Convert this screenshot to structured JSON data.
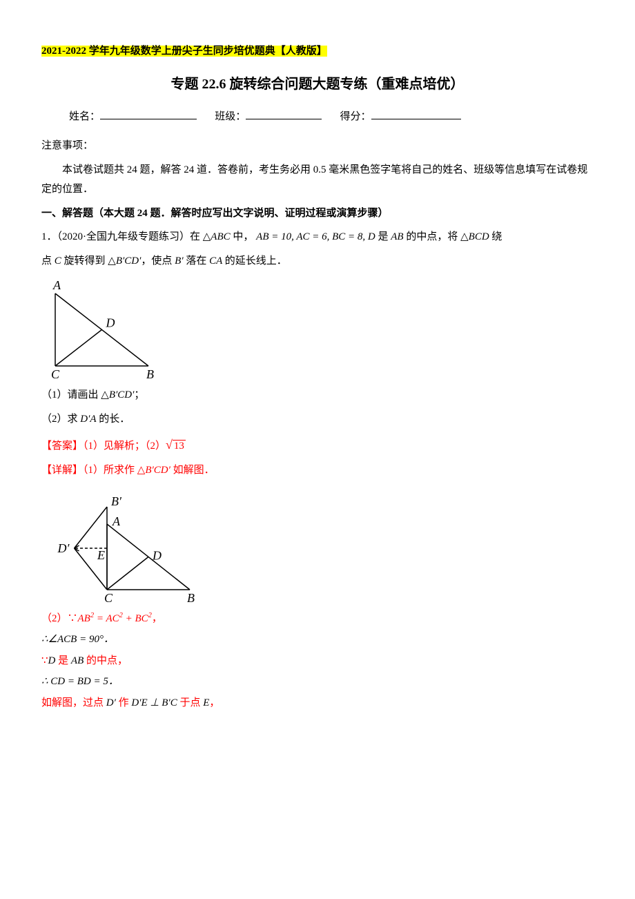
{
  "header": {
    "highlight": "2021-2022 学年九年级数学上册尖子生同步培优题典【人教版】",
    "title": "专题 22.6 旋转综合问题大题专练（重难点培优）",
    "name_label": "姓名：",
    "class_label": "班级：",
    "score_label": "得分："
  },
  "notice": {
    "heading": "注意事项：",
    "body": "本试卷试题共 24 题，解答 24 道．答卷前，考生务必用 0.5 毫米黑色签字笔将自己的姓名、班级等信息填写在试卷规定的位置．"
  },
  "section1": {
    "heading": "一、解答题（本大题 24 题．解答时应写出文字说明、证明过程或演算步骤）"
  },
  "q1": {
    "prefix": "1．（2020·全国九年级专题练习）在",
    "tri_label": "ABC",
    "mid1": "中，",
    "eq": "AB = 10, AC = 6, BC = 8, D",
    "mid2": "是",
    "ab": "AB",
    "mid3": "的中点，将",
    "tri2": "BCD",
    "mid4": "绕",
    "line2a": "点",
    "c_it": " C ",
    "line2b": "旋转得到",
    "tri3": "B′CD′",
    "line2c": "，使点",
    "bprime": " B′ ",
    "line2d": "落在",
    "ca": " CA ",
    "line2e": "的延长线上．",
    "sub1": "（1）请画出",
    "sub1_tri": "B′CD′",
    "sub1_end": "；",
    "sub2": "（2）求",
    "sub2_da": "D′A",
    "sub2_end": "的长．"
  },
  "answer": {
    "label": "【答案】（1）见解析；（2）",
    "root_val": "13"
  },
  "detail": {
    "label": "【详解】（1）所求作",
    "tri": "B′CD′",
    "end": "如解图．"
  },
  "proof": {
    "l1_a": "（2）∵",
    "l1_eq": "AB² = AC² + BC²",
    "l1_comma": "，",
    "l2": "∴∠ACB = 90°．",
    "l3_a": "∵",
    "l3_d": "D",
    "l3_b": "是",
    "l3_ab": "AB",
    "l3_c": "的中点，",
    "l4": "∴ CD = BD = 5．",
    "l5_a": "如解图，过点",
    "l5_d": "D′",
    "l5_b": "作",
    "l5_de": "D′E ⊥ B′C",
    "l5_c": "于点",
    "l5_e": "E",
    "l5_comma": "，"
  },
  "fig1": {
    "A": "A",
    "B": "B",
    "C": "C",
    "D": "D",
    "stroke": "#000000",
    "stroke_width": 1.5,
    "font": "italic 18px 'Times New Roman', serif"
  },
  "fig2": {
    "A": "A",
    "B": "B",
    "C": "C",
    "D": "D",
    "Bp": "B′",
    "Dp": "D′",
    "E": "E",
    "stroke": "#000000",
    "stroke_width": 1.5,
    "font": "italic 18px 'Times New Roman', serif"
  }
}
